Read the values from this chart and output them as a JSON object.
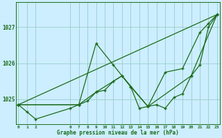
{
  "background_color": "#cceeff",
  "grid_color": "#99cccc",
  "line_color": "#1a6b1a",
  "xlabel": "Graphe pression niveau de la mer (hPa)",
  "series": [
    {
      "x": [
        0,
        1,
        2,
        6,
        7,
        8,
        9,
        10,
        11,
        12,
        13,
        14,
        15,
        16,
        17,
        18,
        19,
        20,
        21,
        22,
        23
      ],
      "y": [
        1024.85,
        1024.65,
        1024.45,
        1024.75,
        1024.85,
        1024.95,
        1025.2,
        1025.25,
        1025.5,
        1025.65,
        1025.35,
        1024.75,
        1024.8,
        1024.85,
        1024.75,
        1025.05,
        1025.15,
        1025.65,
        1025.95,
        1027.0,
        1027.35
      ],
      "marker": "+"
    },
    {
      "x": [
        0,
        23
      ],
      "y": [
        1024.85,
        1027.35
      ],
      "marker": null
    },
    {
      "x": [
        0,
        7,
        9,
        12,
        15,
        20,
        23
      ],
      "y": [
        1024.85,
        1024.85,
        1025.2,
        1025.65,
        1024.8,
        1025.65,
        1027.35
      ],
      "marker": "+"
    },
    {
      "x": [
        0,
        7,
        9,
        11,
        13,
        15,
        17,
        19,
        21,
        22,
        23
      ],
      "y": [
        1024.85,
        1024.85,
        1026.55,
        1025.95,
        1025.35,
        1024.8,
        1025.75,
        1025.85,
        1026.85,
        1027.1,
        1027.35
      ],
      "marker": "+"
    }
  ],
  "ylim": [
    1024.3,
    1027.7
  ],
  "yticks": [
    1025,
    1026,
    1027
  ],
  "xlim": [
    -0.3,
    23.3
  ],
  "xticks": [
    0,
    1,
    2,
    6,
    7,
    8,
    9,
    10,
    11,
    12,
    13,
    14,
    15,
    16,
    17,
    18,
    19,
    20,
    21,
    22,
    23
  ],
  "figsize": [
    3.2,
    2.0
  ],
  "dpi": 100
}
